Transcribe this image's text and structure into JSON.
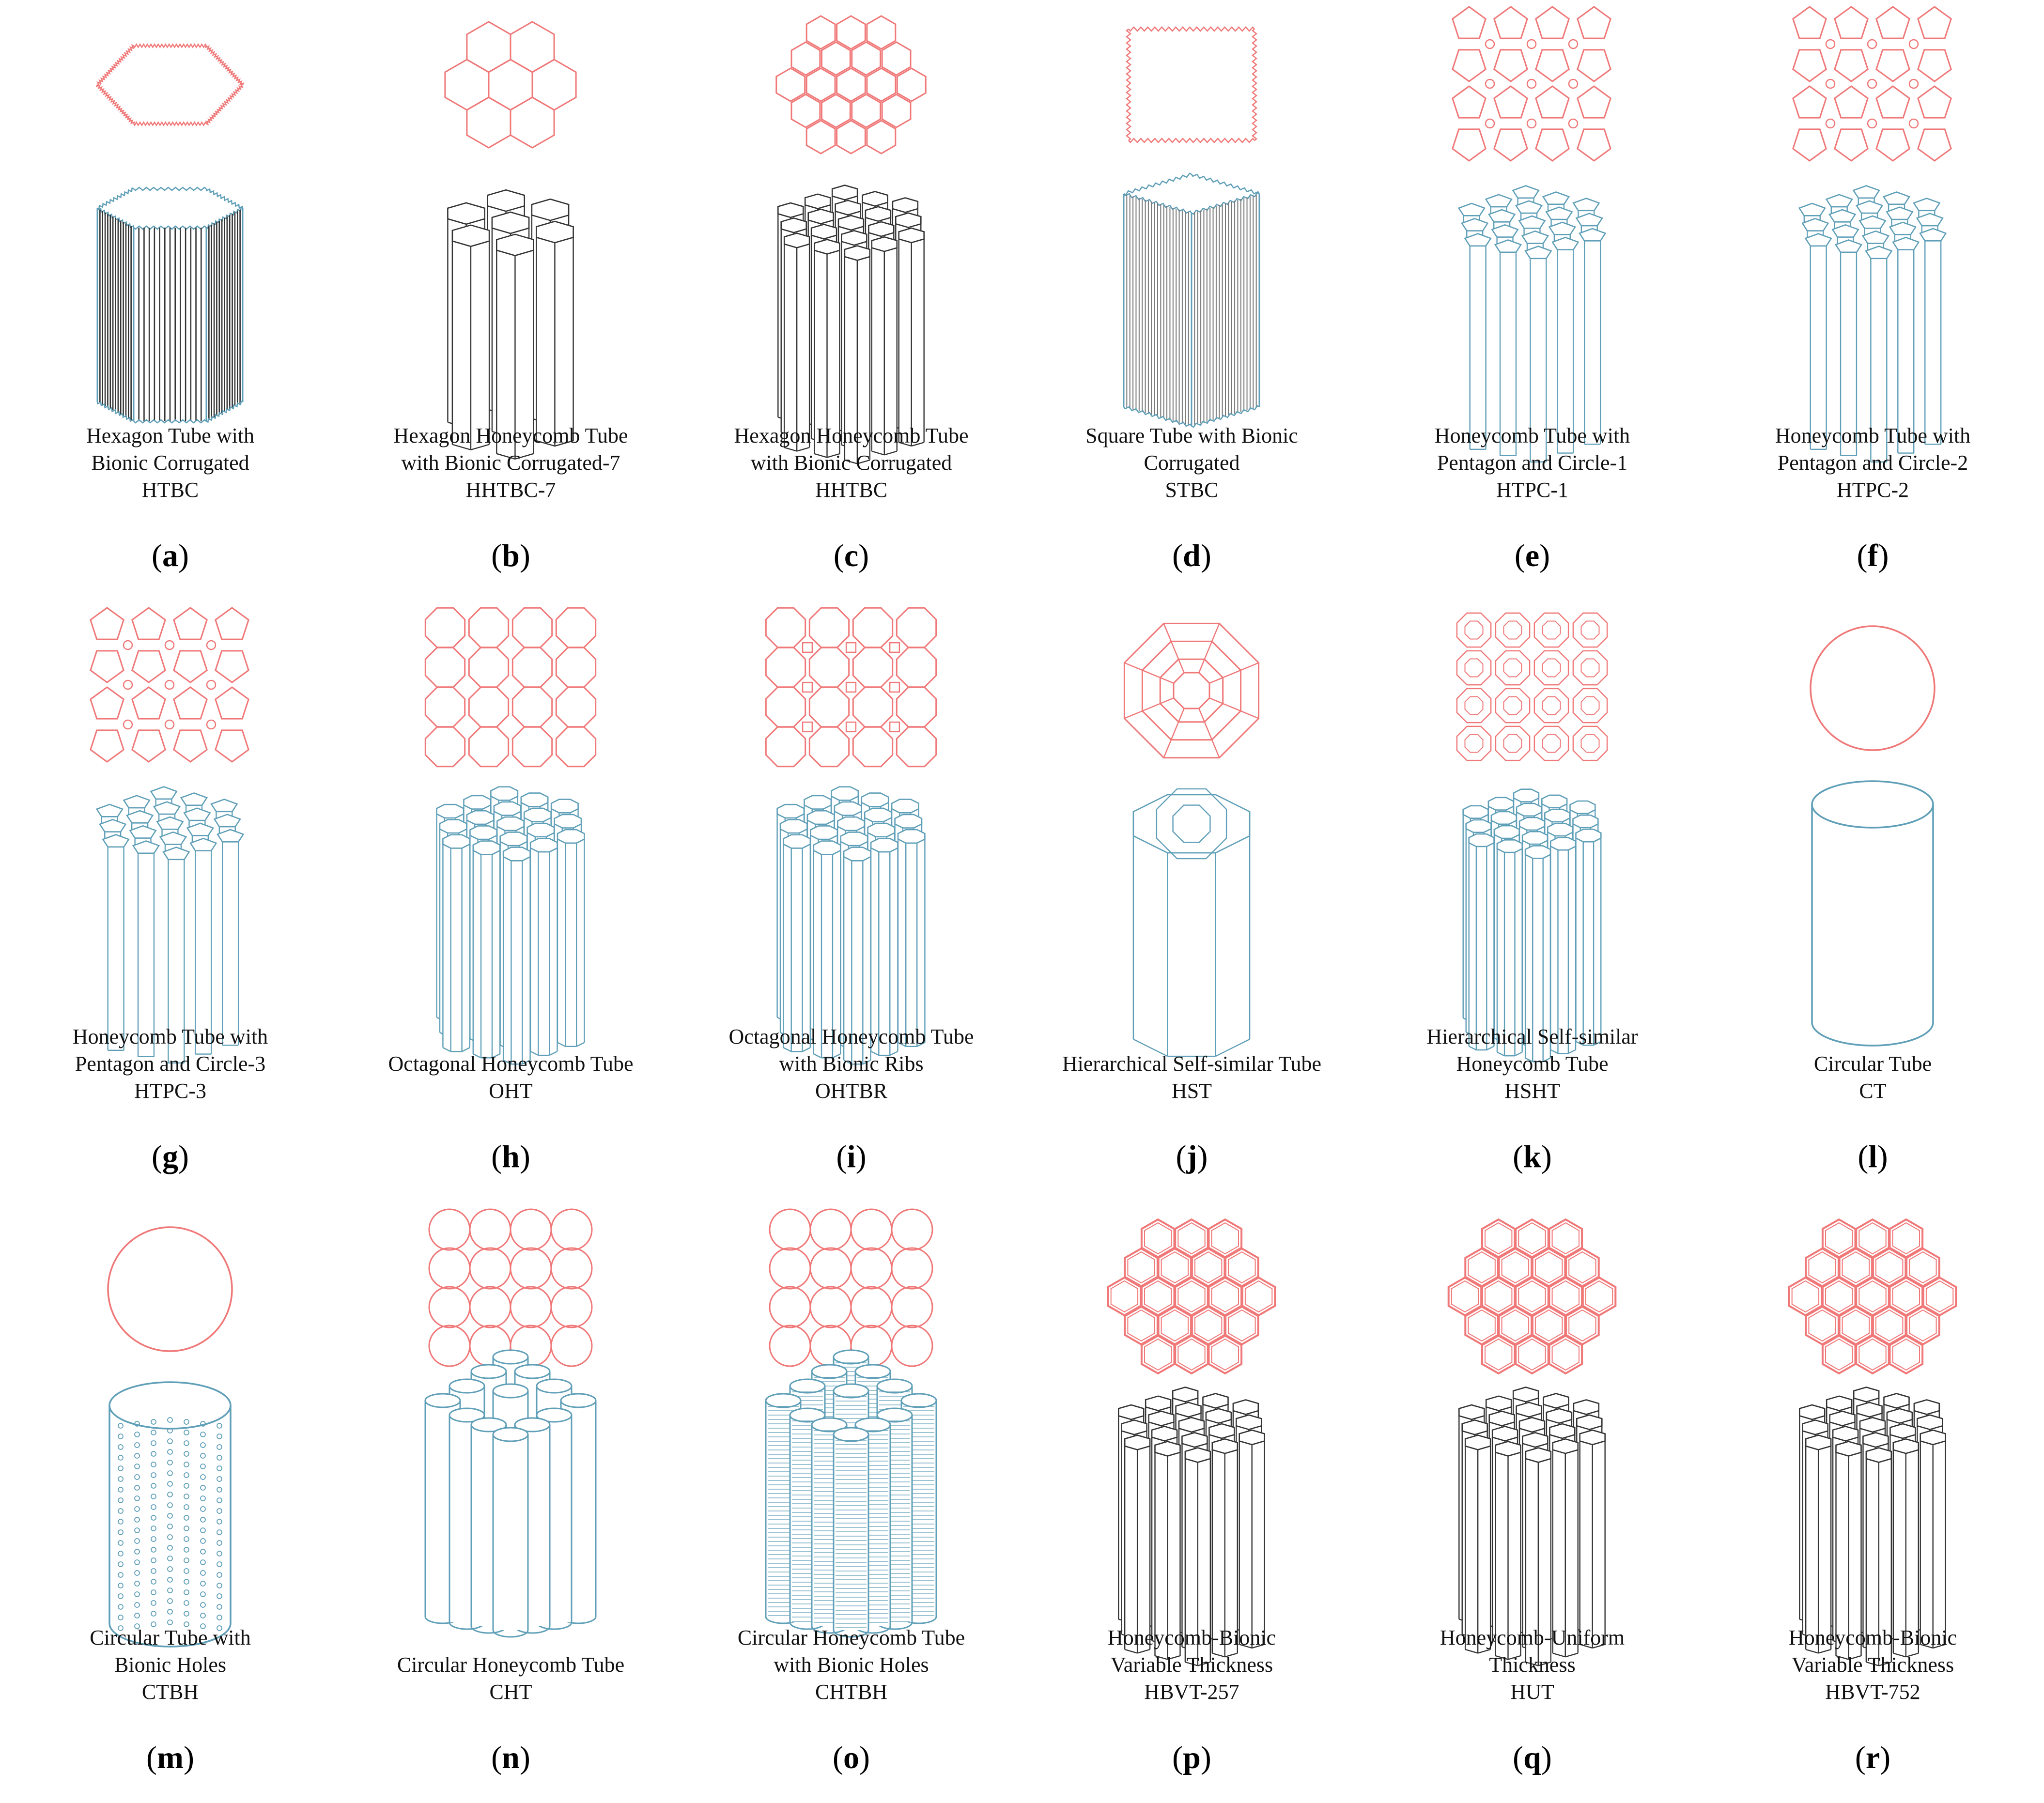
{
  "colors": {
    "section": "#f07878",
    "tube_blue": "#5f9fb8",
    "tube_black": "#333333",
    "tube_gray": "#777777"
  },
  "panels": [
    {
      "letter": "a",
      "caption": [
        "Hexagon Tube with",
        "Bionic Corrugated",
        "HTBC"
      ],
      "section": "hexagon-corrugated",
      "tube": "hexagon-corrugated-tube"
    },
    {
      "letter": "b",
      "caption": [
        "Hexagon Honeycomb Tube",
        "with Bionic Corrugated-7",
        "HHTBC-7"
      ],
      "section": "hexagon-honeycomb-7",
      "tube": "hexagon-honeycomb-tube-7"
    },
    {
      "letter": "c",
      "caption": [
        "Hexagon Honeycomb Tube",
        "with Bionic Corrugated",
        "HHTBC"
      ],
      "section": "hexagon-honeycomb-19",
      "tube": "hexagon-honeycomb-tube-19"
    },
    {
      "letter": "d",
      "caption": [
        "Square Tube with Bionic",
        "Corrugated",
        "STBC"
      ],
      "section": "square-corrugated",
      "tube": "square-corrugated-tube"
    },
    {
      "letter": "e",
      "caption": [
        "Honeycomb Tube with",
        "Pentagon and Circle-1",
        "HTPC-1"
      ],
      "section": "pentagon-circle",
      "tube": "pentagon-honeycomb-tube"
    },
    {
      "letter": "f",
      "caption": [
        "Honeycomb Tube with",
        "Pentagon and Circle-2",
        "HTPC-2"
      ],
      "section": "pentagon-circle",
      "tube": "pentagon-honeycomb-tube"
    },
    {
      "letter": "g",
      "caption": [
        "Honeycomb Tube with",
        "Pentagon and Circle-3",
        "HTPC-3"
      ],
      "section": "pentagon-circle",
      "tube": "pentagon-honeycomb-tube"
    },
    {
      "letter": "h",
      "caption": [
        "Octagonal Honeycomb Tube",
        "OHT"
      ],
      "section": "octagon-grid",
      "tube": "octagon-honeycomb-tube"
    },
    {
      "letter": "i",
      "caption": [
        "Octagonal Honeycomb Tube",
        "with Bionic Ribs",
        "OHTBR"
      ],
      "section": "octagon-ribs",
      "tube": "octagon-honeycomb-tube"
    },
    {
      "letter": "j",
      "caption": [
        "Hierarchical Self-similar Tube",
        "HST"
      ],
      "section": "hierarchical-octagon",
      "tube": "hierarchical-tube"
    },
    {
      "letter": "k",
      "caption": [
        "Hierarchical Self-similar",
        "Honeycomb Tube",
        "HSHT"
      ],
      "section": "hierarchical-honeycomb",
      "tube": "hierarchical-honeycomb-tube"
    },
    {
      "letter": "l",
      "caption": [
        "Circular Tube",
        "CT"
      ],
      "section": "circle",
      "tube": "cylinder"
    },
    {
      "letter": "m",
      "caption": [
        "Circular Tube with",
        "Bionic Holes",
        "CTBH"
      ],
      "section": "circle",
      "tube": "cylinder-holes"
    },
    {
      "letter": "n",
      "caption": [
        "Circular Honeycomb Tube",
        "CHT"
      ],
      "section": "circle-grid",
      "tube": "circular-honeycomb-tube"
    },
    {
      "letter": "o",
      "caption": [
        "Circular Honeycomb Tube",
        "with Bionic Holes",
        "CHTBH"
      ],
      "section": "circle-grid",
      "tube": "circular-honeycomb-tube-holes"
    },
    {
      "letter": "p",
      "caption": [
        "Honeycomb-Bionic",
        "Variable Thickness",
        "HBVT-257"
      ],
      "section": "honeycomb-19",
      "tube": "honeycomb-tube-19"
    },
    {
      "letter": "q",
      "caption": [
        "Honeycomb-Uniform",
        "Thickness",
        "HUT"
      ],
      "section": "honeycomb-19",
      "tube": "honeycomb-tube-19"
    },
    {
      "letter": "r",
      "caption": [
        "Honeycomb-Bionic",
        "Variable Thickness",
        "HBVT-752"
      ],
      "section": "honeycomb-19",
      "tube": "honeycomb-tube-19"
    }
  ]
}
